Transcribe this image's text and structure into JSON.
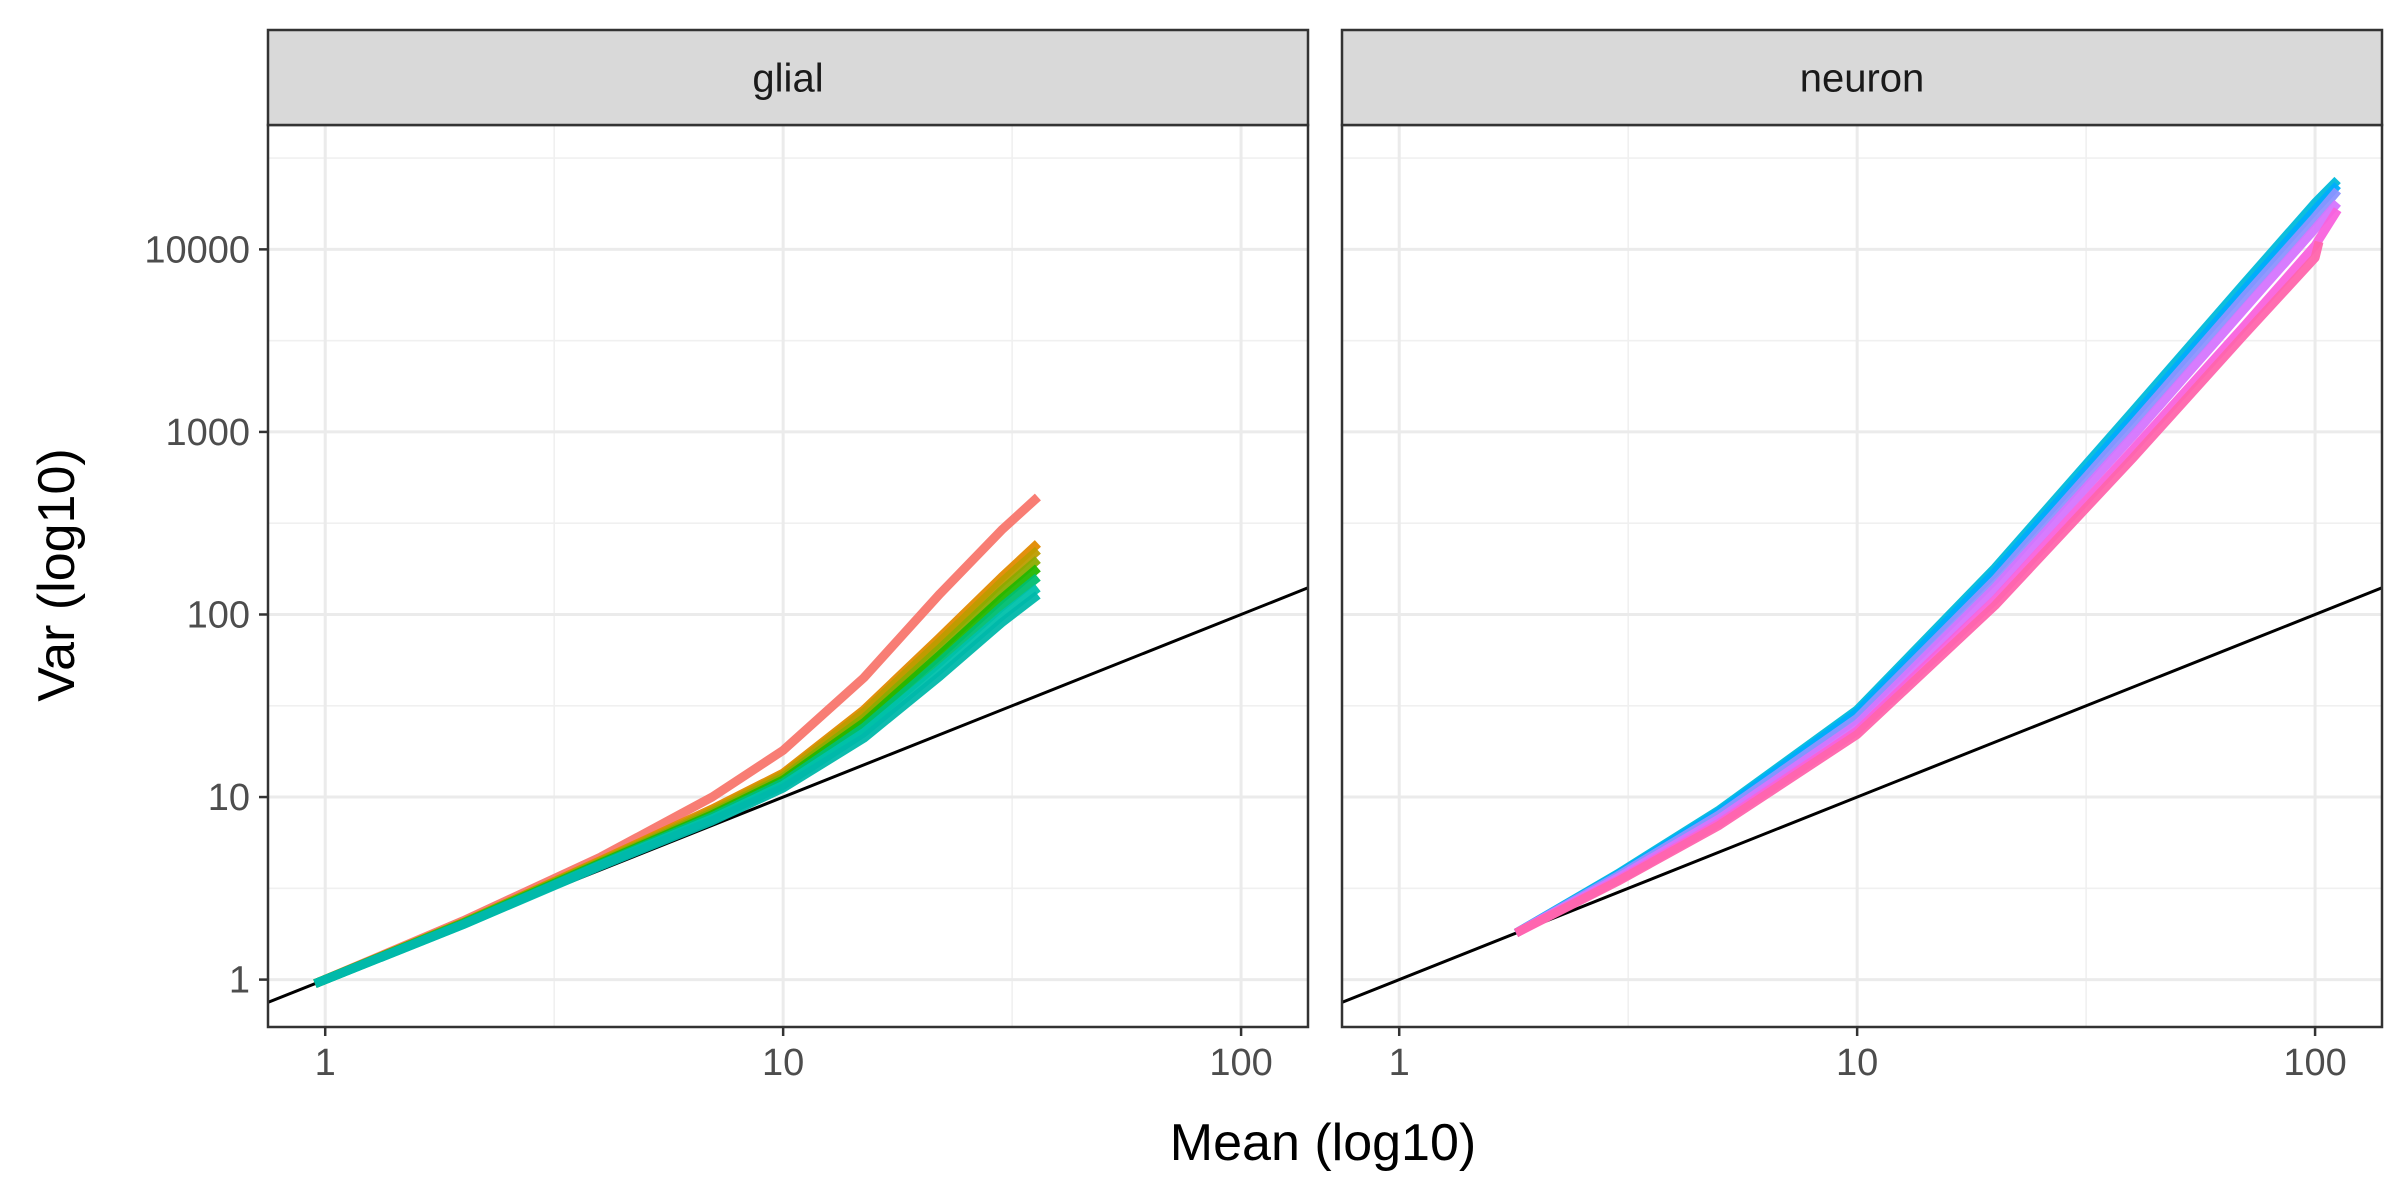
{
  "chart_data": {
    "type": "line",
    "xlabel": "Mean (log10)",
    "ylabel": "Var (log10)",
    "x_scale": "log10",
    "y_scale": "log10",
    "xlim": [
      0.75,
      140
    ],
    "ylim": [
      0.55,
      48000
    ],
    "x_ticks": [
      1,
      10,
      100
    ],
    "x_tick_labels": [
      "1",
      "10",
      "100"
    ],
    "y_ticks": [
      1,
      10,
      100,
      1000,
      10000
    ],
    "y_tick_labels": [
      "1",
      "10",
      "100",
      "1000",
      "10000"
    ],
    "grid": true,
    "reference_line": "y = x",
    "panels": [
      {
        "title": "glial",
        "series": [
          {
            "color": "#F8766D",
            "points": [
              [
                0.95,
                0.95
              ],
              [
                2,
                2.1
              ],
              [
                4,
                4.7
              ],
              [
                7,
                10
              ],
              [
                10,
                18
              ],
              [
                15,
                45
              ],
              [
                22,
                130
              ],
              [
                30,
                290
              ],
              [
                36,
                440
              ]
            ]
          },
          {
            "color": "#E18A00",
            "points": [
              [
                0.95,
                0.95
              ],
              [
                2,
                2.05
              ],
              [
                4,
                4.5
              ],
              [
                7,
                8.6
              ],
              [
                10,
                13.5
              ],
              [
                15,
                30
              ],
              [
                22,
                75
              ],
              [
                30,
                160
              ],
              [
                36,
                245
              ]
            ]
          },
          {
            "color": "#BE9C00",
            "points": [
              [
                0.95,
                0.95
              ],
              [
                2,
                2.05
              ],
              [
                4,
                4.45
              ],
              [
                7,
                8.4
              ],
              [
                10,
                13.2
              ],
              [
                15,
                29
              ],
              [
                22,
                71
              ],
              [
                30,
                150
              ],
              [
                36,
                225
              ]
            ]
          },
          {
            "color": "#8CAB00",
            "points": [
              [
                0.95,
                0.95
              ],
              [
                2,
                2.05
              ],
              [
                4,
                4.4
              ],
              [
                7,
                8.2
              ],
              [
                10,
                12.8
              ],
              [
                15,
                27
              ],
              [
                22,
                65
              ],
              [
                30,
                135
              ],
              [
                36,
                200
              ]
            ]
          },
          {
            "color": "#24B700",
            "points": [
              [
                0.95,
                0.95
              ],
              [
                2,
                2.03
              ],
              [
                4,
                4.35
              ],
              [
                7,
                8
              ],
              [
                10,
                12.4
              ],
              [
                15,
                25.5
              ],
              [
                22,
                60
              ],
              [
                30,
                122
              ],
              [
                36,
                180
              ]
            ]
          },
          {
            "color": "#00BE70",
            "points": [
              [
                0.95,
                0.95
              ],
              [
                2,
                2.02
              ],
              [
                4,
                4.3
              ],
              [
                7,
                7.8
              ],
              [
                10,
                12
              ],
              [
                15,
                24
              ],
              [
                22,
                55
              ],
              [
                30,
                110
              ],
              [
                36,
                160
              ]
            ]
          },
          {
            "color": "#00C1AB",
            "points": [
              [
                0.95,
                0.95
              ],
              [
                2,
                2
              ],
              [
                4,
                4.25
              ],
              [
                7,
                7.6
              ],
              [
                10,
                11.6
              ],
              [
                15,
                22.5
              ],
              [
                22,
                50
              ],
              [
                30,
                98
              ],
              [
                36,
                140
              ]
            ]
          },
          {
            "color": "#00B8AA",
            "points": [
              [
                0.95,
                0.95
              ],
              [
                2,
                2
              ],
              [
                4,
                4.2
              ],
              [
                7,
                7.4
              ],
              [
                10,
                11.2
              ],
              [
                15,
                21
              ],
              [
                22,
                46
              ],
              [
                30,
                90
              ],
              [
                36,
                128
              ]
            ]
          }
        ]
      },
      {
        "title": "neuron",
        "series": [
          {
            "color": "#00BBDA",
            "points": [
              [
                1.8,
                1.8
              ],
              [
                3,
                3.8
              ],
              [
                5,
                8.5
              ],
              [
                10,
                30
              ],
              [
                20,
                180
              ],
              [
                40,
                1300
              ],
              [
                70,
                6500
              ],
              [
                100,
                18000
              ],
              [
                112,
                24000
              ]
            ]
          },
          {
            "color": "#00ACFC",
            "points": [
              [
                1.8,
                1.8
              ],
              [
                3,
                3.75
              ],
              [
                5,
                8.3
              ],
              [
                10,
                29
              ],
              [
                20,
                170
              ],
              [
                40,
                1200
              ],
              [
                70,
                6000
              ],
              [
                100,
                16500
              ],
              [
                112,
                22500
              ]
            ]
          },
          {
            "color": "#8B93FF",
            "points": [
              [
                1.8,
                1.8
              ],
              [
                3,
                3.7
              ],
              [
                5,
                8
              ],
              [
                10,
                27
              ],
              [
                20,
                155
              ],
              [
                40,
                1100
              ],
              [
                70,
                5500
              ],
              [
                100,
                15000
              ],
              [
                112,
                21000
              ]
            ]
          },
          {
            "color": "#D575FE",
            "points": [
              [
                1.8,
                1.8
              ],
              [
                3,
                3.6
              ],
              [
                5,
                7.6
              ],
              [
                10,
                25
              ],
              [
                20,
                140
              ],
              [
                40,
                950
              ],
              [
                70,
                4700
              ],
              [
                100,
                13000
              ],
              [
                112,
                18000
              ]
            ]
          },
          {
            "color": "#F962DD",
            "points": [
              [
                1.8,
                1.8
              ],
              [
                3,
                3.5
              ],
              [
                5,
                7.2
              ],
              [
                10,
                23
              ],
              [
                20,
                120
              ],
              [
                40,
                800
              ],
              [
                70,
                3800
              ],
              [
                100,
                10500
              ],
              [
                112,
                16500
              ]
            ]
          },
          {
            "color": "#FF65AC",
            "points": [
              [
                1.8,
                1.8
              ],
              [
                3,
                3.45
              ],
              [
                5,
                7
              ],
              [
                10,
                22
              ],
              [
                20,
                112
              ],
              [
                40,
                720
              ],
              [
                70,
                3400
              ],
              [
                100,
                9000
              ],
              [
                102,
                11000
              ]
            ]
          }
        ]
      }
    ]
  }
}
